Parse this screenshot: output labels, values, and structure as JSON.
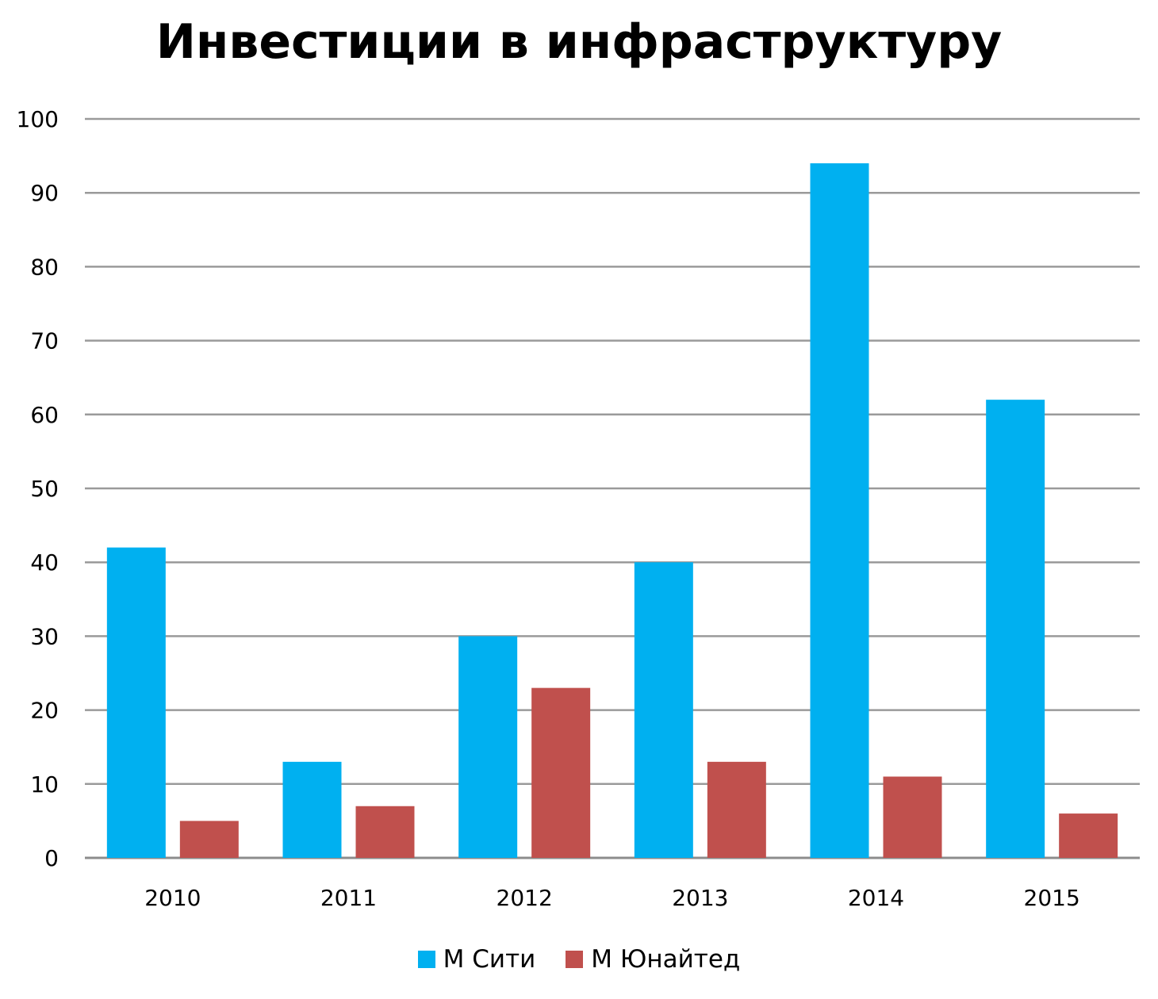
{
  "chart_data": {
    "type": "bar",
    "title": "Инвестиции в инфраструктуру",
    "xlabel": "",
    "ylabel": "",
    "categories": [
      "2010",
      "2011",
      "2012",
      "2013",
      "2014",
      "2015"
    ],
    "series": [
      {
        "name": "М Сити",
        "color": "#00B0F0",
        "values": [
          42,
          13,
          30,
          40,
          94,
          62
        ]
      },
      {
        "name": "М Юнайтед",
        "color": "#C0504D",
        "values": [
          5,
          7,
          23,
          13,
          11,
          6
        ]
      }
    ],
    "ylim": [
      0,
      100
    ],
    "yticks": [
      "0",
      "10",
      "20",
      "30",
      "40",
      "50",
      "60",
      "70",
      "80",
      "90",
      "100"
    ],
    "grid": true,
    "legend_position": "bottom"
  }
}
